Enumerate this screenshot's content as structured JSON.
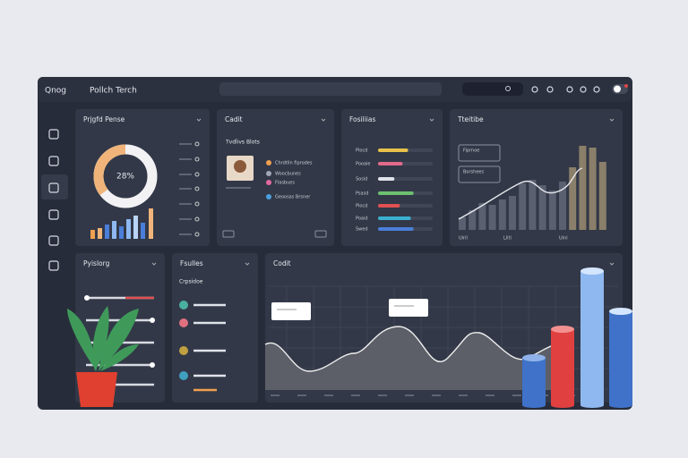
{
  "header": {
    "logo": "Qnog",
    "title": "Pollch Terch"
  },
  "panels": [
    {
      "title": "Prjgfd Pense",
      "center": "28%"
    },
    {
      "title": "Cadit",
      "subtitle": "Tvdlivs Blots",
      "items": [
        "Chrdtlin fiprodes",
        "Woocbunes",
        "Flasbues",
        "Geoosas Brsner"
      ]
    },
    {
      "title": "Fosiliias",
      "items": [
        "Plocd",
        "Pooaie",
        "Sosid",
        "Psasd",
        "Plocd",
        "Poaid",
        "Swed"
      ]
    },
    {
      "title": "Tteitibe",
      "notes": [
        "Fiprnoe",
        "Borshees"
      ],
      "xlabels": [
        "Ulril",
        "Lliti",
        "Uinl"
      ]
    },
    {
      "title": "Pyislorg"
    },
    {
      "title": "Fsulles",
      "subtitle": "Crpsidoe"
    },
    {
      "title": "Codit"
    }
  ]
}
